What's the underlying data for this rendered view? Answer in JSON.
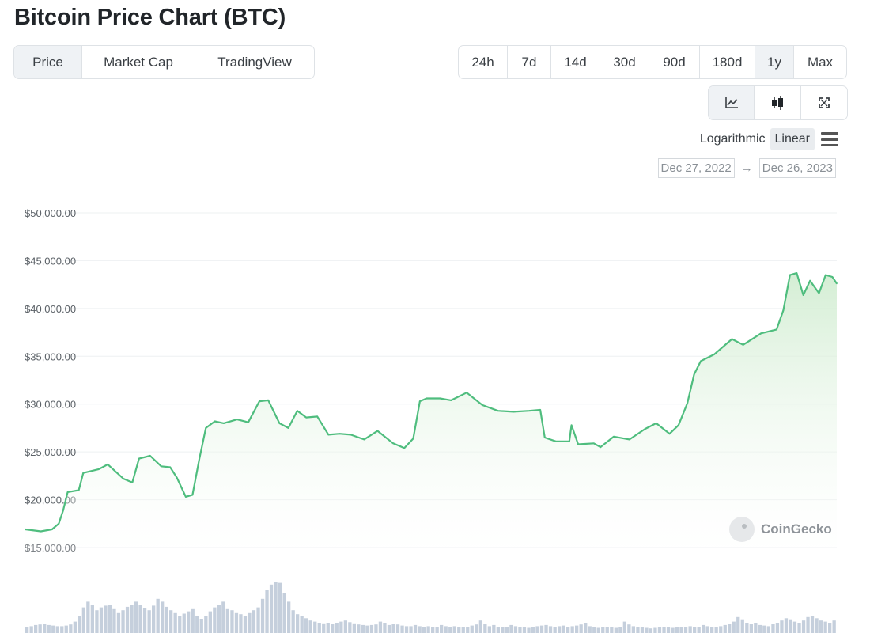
{
  "page": {
    "title": "Bitcoin Price Chart (BTC)"
  },
  "view_tabs": [
    {
      "label": "Price",
      "active": true
    },
    {
      "label": "Market Cap",
      "active": false
    },
    {
      "label": "TradingView",
      "active": false
    }
  ],
  "range_tabs": [
    {
      "label": "24h",
      "active": false
    },
    {
      "label": "7d",
      "active": false
    },
    {
      "label": "14d",
      "active": false
    },
    {
      "label": "30d",
      "active": false
    },
    {
      "label": "90d",
      "active": false
    },
    {
      "label": "180d",
      "active": false
    },
    {
      "label": "1y",
      "active": true
    },
    {
      "label": "Max",
      "active": false
    }
  ],
  "tool_buttons": [
    {
      "icon": "line-chart-icon",
      "active": true
    },
    {
      "icon": "candlestick-icon",
      "active": false
    },
    {
      "icon": "fullscreen-icon",
      "active": false
    }
  ],
  "scale": {
    "log_label": "Logarithmic",
    "linear_label": "Linear",
    "selected": "Linear"
  },
  "date_range": {
    "from": "Dec 27, 2022",
    "arrow": "→",
    "to": "Dec 26, 2023"
  },
  "watermark": {
    "label": "CoinGecko"
  },
  "colors": {
    "line": "#4fbd7e",
    "fill_top": "#cfeccf",
    "volume": "#c5cfdc",
    "grid": "#eef0f2",
    "axis_text": "#5b6167"
  },
  "chart_data": {
    "type": "area",
    "title": "Bitcoin Price Chart (BTC)",
    "x_range": [
      "2022-12-27",
      "2023-12-26"
    ],
    "ylim": [
      15000,
      50000
    ],
    "yticks": [
      15000,
      20000,
      25000,
      30000,
      35000,
      40000,
      45000,
      50000
    ],
    "ytick_labels": [
      "$15,000.00",
      "$20,000.00",
      "$25,000.00",
      "$30,000.00",
      "$35,000.00",
      "$40,000.00",
      "$45,000.00",
      "$50,000.00"
    ],
    "grid": true,
    "series": [
      {
        "x": [
          "2022-12-27",
          "2023-01-03",
          "2023-01-08",
          "2023-01-11",
          "2023-01-13",
          "2023-01-15",
          "2023-01-20",
          "2023-01-22",
          "2023-01-29",
          "2023-02-02",
          "2023-02-09",
          "2023-02-13",
          "2023-02-16",
          "2023-02-21",
          "2023-02-26",
          "2023-03-02",
          "2023-03-05",
          "2023-03-09",
          "2023-03-12",
          "2023-03-15",
          "2023-03-18",
          "2023-03-22",
          "2023-03-26",
          "2023-04-01",
          "2023-04-06",
          "2023-04-11",
          "2023-04-15",
          "2023-04-20",
          "2023-04-24",
          "2023-04-28",
          "2023-05-02",
          "2023-05-07",
          "2023-05-12",
          "2023-05-17",
          "2023-05-22",
          "2023-05-28",
          "2023-06-03",
          "2023-06-10",
          "2023-06-15",
          "2023-06-19",
          "2023-06-22",
          "2023-06-25",
          "2023-07-01",
          "2023-07-06",
          "2023-07-13",
          "2023-07-20",
          "2023-07-27",
          "2023-08-03",
          "2023-08-10",
          "2023-08-15",
          "2023-08-17",
          "2023-08-22",
          "2023-08-28",
          "2023-08-29",
          "2023-09-01",
          "2023-09-08",
          "2023-09-11",
          "2023-09-17",
          "2023-09-24",
          "2023-10-01",
          "2023-10-06",
          "2023-10-12",
          "2023-10-16",
          "2023-10-20",
          "2023-10-23",
          "2023-10-26",
          "2023-11-01",
          "2023-11-09",
          "2023-11-14",
          "2023-11-22",
          "2023-11-29",
          "2023-12-02",
          "2023-12-05",
          "2023-12-08",
          "2023-12-11",
          "2023-12-14",
          "2023-12-18",
          "2023-12-21",
          "2023-12-24",
          "2023-12-26"
        ],
        "values": [
          16900,
          16700,
          16900,
          17500,
          18900,
          20800,
          21000,
          22800,
          23200,
          23700,
          22200,
          21800,
          24300,
          24600,
          23500,
          23400,
          22300,
          20300,
          20500,
          24200,
          27500,
          28200,
          28000,
          28400,
          28100,
          30300,
          30400,
          28000,
          27500,
          29300,
          28600,
          28700,
          26800,
          26900,
          26800,
          26300,
          27200,
          25900,
          25400,
          26400,
          30300,
          30600,
          30600,
          30400,
          31200,
          29900,
          29300,
          29200,
          29300,
          29400,
          26500,
          26100,
          26100,
          27800,
          25800,
          25900,
          25500,
          26600,
          26300,
          27400,
          28000,
          26900,
          27800,
          30100,
          33100,
          34500,
          35200,
          36800,
          36200,
          37400,
          37800,
          39800,
          43500,
          43700,
          41400,
          42900,
          41600,
          43500,
          43300,
          42600
        ]
      }
    ],
    "volume": {
      "note": "bottom panel, relative volume 0-1 (no axis labels shown)",
      "values": [
        0.1,
        0.12,
        0.14,
        0.15,
        0.16,
        0.14,
        0.13,
        0.12,
        0.12,
        0.13,
        0.15,
        0.2,
        0.3,
        0.45,
        0.55,
        0.5,
        0.4,
        0.45,
        0.48,
        0.5,
        0.42,
        0.35,
        0.4,
        0.46,
        0.5,
        0.55,
        0.5,
        0.44,
        0.4,
        0.48,
        0.6,
        0.55,
        0.46,
        0.4,
        0.35,
        0.3,
        0.34,
        0.38,
        0.42,
        0.3,
        0.25,
        0.3,
        0.38,
        0.45,
        0.5,
        0.55,
        0.42,
        0.4,
        0.35,
        0.33,
        0.3,
        0.35,
        0.4,
        0.45,
        0.6,
        0.75,
        0.85,
        0.9,
        0.88,
        0.7,
        0.55,
        0.4,
        0.33,
        0.3,
        0.26,
        0.22,
        0.2,
        0.18,
        0.17,
        0.18,
        0.16,
        0.18,
        0.2,
        0.22,
        0.19,
        0.17,
        0.15,
        0.14,
        0.13,
        0.14,
        0.15,
        0.2,
        0.18,
        0.14,
        0.16,
        0.15,
        0.13,
        0.12,
        0.12,
        0.14,
        0.12,
        0.11,
        0.12,
        0.1,
        0.11,
        0.14,
        0.12,
        0.1,
        0.12,
        0.11,
        0.1,
        0.1,
        0.13,
        0.15,
        0.22,
        0.16,
        0.12,
        0.14,
        0.11,
        0.1,
        0.1,
        0.14,
        0.12,
        0.11,
        0.1,
        0.09,
        0.1,
        0.12,
        0.13,
        0.14,
        0.12,
        0.11,
        0.12,
        0.13,
        0.11,
        0.12,
        0.13,
        0.15,
        0.18,
        0.12,
        0.1,
        0.09,
        0.1,
        0.11,
        0.1,
        0.09,
        0.1,
        0.2,
        0.15,
        0.12,
        0.11,
        0.1,
        0.09,
        0.08,
        0.09,
        0.1,
        0.11,
        0.1,
        0.09,
        0.1,
        0.11,
        0.1,
        0.12,
        0.1,
        0.11,
        0.14,
        0.12,
        0.1,
        0.11,
        0.12,
        0.14,
        0.16,
        0.2,
        0.28,
        0.24,
        0.18,
        0.16,
        0.18,
        0.14,
        0.13,
        0.12,
        0.16,
        0.18,
        0.22,
        0.26,
        0.24,
        0.2,
        0.18,
        0.22,
        0.28,
        0.3,
        0.26,
        0.22,
        0.2,
        0.18,
        0.22
      ]
    }
  }
}
